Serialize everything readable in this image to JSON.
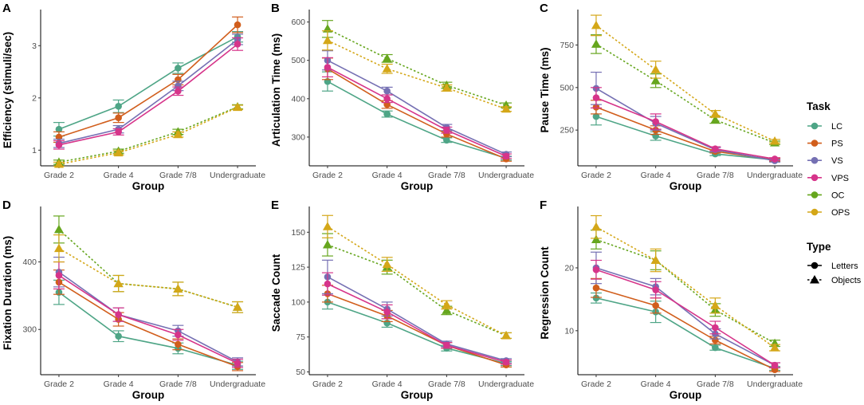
{
  "chart_data": [
    {
      "panel": "A",
      "type": "line",
      "xlabel": "Group",
      "ylabel": "Efficiency (stimuli/sec)",
      "categories": [
        "Grade 2",
        "Grade 4",
        "Grade 7/8",
        "Undergraduate"
      ],
      "ylim": [
        0.7,
        3.6
      ],
      "yticks": [
        1,
        2,
        3
      ],
      "series": [
        {
          "name": "LC",
          "type": "Letters",
          "values": [
            1.4,
            1.84,
            2.57,
            3.17
          ],
          "err": [
            0.13,
            0.12,
            0.1,
            0.1
          ]
        },
        {
          "name": "PS",
          "type": "Letters",
          "values": [
            1.25,
            1.62,
            2.35,
            3.4
          ],
          "err": [
            0.1,
            0.09,
            0.1,
            0.15
          ]
        },
        {
          "name": "VS",
          "type": "Letters",
          "values": [
            1.13,
            1.4,
            2.23,
            3.12
          ],
          "err": [
            0.08,
            0.07,
            0.09,
            0.1
          ]
        },
        {
          "name": "VPS",
          "type": "Letters",
          "values": [
            1.1,
            1.35,
            2.13,
            3.03
          ],
          "err": [
            0.08,
            0.06,
            0.08,
            0.12
          ]
        },
        {
          "name": "OC",
          "type": "Objects",
          "values": [
            0.77,
            0.98,
            1.35,
            1.83
          ],
          "err": [
            0.04,
            0.04,
            0.05,
            0.04
          ]
        },
        {
          "name": "OPS",
          "type": "Objects",
          "values": [
            0.73,
            0.95,
            1.3,
            1.82
          ],
          "err": [
            0.04,
            0.04,
            0.05,
            0.04
          ]
        }
      ]
    },
    {
      "panel": "B",
      "type": "line",
      "xlabel": "Group",
      "ylabel": "Articulation Time (ms)",
      "categories": [
        "Grade 2",
        "Grade 4",
        "Grade 7/8",
        "Undergraduate"
      ],
      "ylim": [
        225,
        620
      ],
      "yticks": [
        300,
        400,
        500,
        600
      ],
      "series": [
        {
          "name": "LC",
          "type": "Letters",
          "values": [
            445,
            360,
            292,
            245
          ],
          "err": [
            25,
            8,
            6,
            5
          ]
        },
        {
          "name": "PS",
          "type": "Letters",
          "values": [
            478,
            385,
            308,
            243
          ],
          "err": [
            28,
            10,
            8,
            6
          ]
        },
        {
          "name": "VS",
          "type": "Letters",
          "values": [
            500,
            420,
            325,
            255
          ],
          "err": [
            25,
            10,
            8,
            6
          ]
        },
        {
          "name": "VPS",
          "type": "Letters",
          "values": [
            482,
            400,
            318,
            250
          ],
          "err": [
            25,
            10,
            8,
            6
          ]
        },
        {
          "name": "OC",
          "type": "Objects",
          "values": [
            582,
            505,
            435,
            383
          ],
          "err": [
            22,
            10,
            8,
            6
          ]
        },
        {
          "name": "OPS",
          "type": "Objects",
          "values": [
            552,
            478,
            428,
            373
          ],
          "err": [
            25,
            12,
            8,
            6
          ]
        }
      ]
    },
    {
      "panel": "C",
      "type": "line",
      "xlabel": "Group",
      "ylabel": "Pause Time (ms)",
      "categories": [
        "Grade 2",
        "Grade 4",
        "Grade 7/8",
        "Undergraduate"
      ],
      "ylim": [
        40,
        930
      ],
      "yticks": [
        250,
        500,
        750
      ],
      "series": [
        {
          "name": "LC",
          "type": "Letters",
          "values": [
            330,
            215,
            110,
            75
          ],
          "err": [
            50,
            25,
            10,
            8
          ]
        },
        {
          "name": "PS",
          "type": "Letters",
          "values": [
            385,
            250,
            125,
            75
          ],
          "err": [
            40,
            25,
            10,
            8
          ]
        },
        {
          "name": "VS",
          "type": "Letters",
          "values": [
            495,
            290,
            135,
            70
          ],
          "err": [
            95,
            40,
            12,
            8
          ]
        },
        {
          "name": "VPS",
          "type": "Letters",
          "values": [
            440,
            300,
            140,
            80
          ],
          "err": [
            60,
            45,
            12,
            8
          ]
        },
        {
          "name": "OC",
          "type": "Objects",
          "values": [
            755,
            540,
            310,
            175
          ],
          "err": [
            55,
            40,
            20,
            10
          ]
        },
        {
          "name": "OPS",
          "type": "Objects",
          "values": [
            865,
            605,
            345,
            185
          ],
          "err": [
            60,
            50,
            20,
            10
          ]
        }
      ]
    },
    {
      "panel": "D",
      "type": "line",
      "xlabel": "Group",
      "ylabel": "Fixation Duration (ms)",
      "categories": [
        "Grade 2",
        "Grade 4",
        "Grade 7/8",
        "Undergraduate"
      ],
      "ylim": [
        233,
        475
      ],
      "yticks": [
        300,
        400
      ],
      "series": [
        {
          "name": "LC",
          "type": "Letters",
          "values": [
            355,
            290,
            272,
            247
          ],
          "err": [
            18,
            8,
            8,
            6
          ]
        },
        {
          "name": "PS",
          "type": "Letters",
          "values": [
            370,
            315,
            278,
            245
          ],
          "err": [
            18,
            10,
            8,
            6
          ]
        },
        {
          "name": "VS",
          "type": "Letters",
          "values": [
            385,
            322,
            298,
            252
          ],
          "err": [
            22,
            10,
            8,
            6
          ]
        },
        {
          "name": "VPS",
          "type": "Letters",
          "values": [
            380,
            322,
            292,
            250
          ],
          "err": [
            20,
            10,
            8,
            6
          ]
        },
        {
          "name": "OC",
          "type": "Objects",
          "values": [
            448,
            368,
            360,
            333
          ],
          "err": [
            20,
            12,
            10,
            8
          ]
        },
        {
          "name": "OPS",
          "type": "Objects",
          "values": [
            420,
            368,
            360,
            333
          ],
          "err": [
            20,
            12,
            10,
            8
          ]
        }
      ]
    },
    {
      "panel": "E",
      "type": "line",
      "xlabel": "Group",
      "ylabel": "Saccade Count",
      "categories": [
        "Grade 2",
        "Grade 4",
        "Grade 7/8",
        "Undergraduate"
      ],
      "ylim": [
        48,
        165
      ],
      "yticks": [
        50,
        75,
        100,
        125,
        150
      ],
      "series": [
        {
          "name": "LC",
          "type": "Letters",
          "values": [
            100,
            85,
            67,
            56
          ],
          "err": [
            5,
            3,
            2,
            1.5
          ]
        },
        {
          "name": "PS",
          "type": "Letters",
          "values": [
            106,
            90,
            69,
            55
          ],
          "err": [
            6,
            4,
            2,
            1.5
          ]
        },
        {
          "name": "VS",
          "type": "Letters",
          "values": [
            118,
            95,
            70,
            58
          ],
          "err": [
            12,
            5,
            2,
            1.5
          ]
        },
        {
          "name": "VPS",
          "type": "Letters",
          "values": [
            113,
            93,
            69,
            57
          ],
          "err": [
            8,
            5,
            2,
            1.5
          ]
        },
        {
          "name": "OC",
          "type": "Objects",
          "values": [
            141,
            125,
            94,
            76
          ],
          "err": [
            8,
            5,
            3,
            2
          ]
        },
        {
          "name": "OPS",
          "type": "Objects",
          "values": [
            154,
            127,
            98,
            76
          ],
          "err": [
            8,
            5,
            3,
            2
          ]
        }
      ]
    },
    {
      "panel": "F",
      "type": "line",
      "xlabel": "Group",
      "ylabel": "Regression Count",
      "categories": [
        "Grade 2",
        "Grade 4",
        "Grade 7/8",
        "Undergraduate"
      ],
      "ylim": [
        3,
        29
      ],
      "yticks": [
        10,
        20
      ],
      "series": [
        {
          "name": "LC",
          "type": "Letters",
          "values": [
            15.2,
            13.0,
            7.3,
            4.0
          ],
          "err": [
            0.8,
            1.7,
            0.4,
            0.3
          ]
        },
        {
          "name": "PS",
          "type": "Letters",
          "values": [
            16.8,
            14.0,
            8.5,
            3.8
          ],
          "err": [
            1.5,
            1.2,
            0.6,
            0.3
          ]
        },
        {
          "name": "VS",
          "type": "Letters",
          "values": [
            20.0,
            17.0,
            9.5,
            4.5
          ],
          "err": [
            2.5,
            1.3,
            0.8,
            0.4
          ]
        },
        {
          "name": "VPS",
          "type": "Letters",
          "values": [
            19.7,
            16.5,
            10.5,
            4.5
          ],
          "err": [
            1.5,
            1.3,
            1.0,
            0.4
          ]
        },
        {
          "name": "OC",
          "type": "Objects",
          "values": [
            24.5,
            21.2,
            13.3,
            8.0
          ],
          "err": [
            1.5,
            1.5,
            1.0,
            0.5
          ]
        },
        {
          "name": "OPS",
          "type": "Objects",
          "values": [
            26.5,
            21.2,
            14.0,
            7.3
          ],
          "err": [
            1.8,
            1.8,
            1.2,
            0.5
          ]
        }
      ]
    }
  ],
  "legend": {
    "task_title": "Task",
    "tasks": [
      {
        "name": "LC",
        "color": "#4ea586"
      },
      {
        "name": "PS",
        "color": "#d15e1c"
      },
      {
        "name": "VS",
        "color": "#7570b3"
      },
      {
        "name": "VPS",
        "color": "#d6348a"
      },
      {
        "name": "OC",
        "color": "#66a61e"
      },
      {
        "name": "OPS",
        "color": "#d4a718"
      }
    ],
    "type_title": "Type",
    "types": [
      {
        "name": "Letters",
        "shape": "circle",
        "line": "solid"
      },
      {
        "name": "Objects",
        "shape": "triangle",
        "line": "dotted"
      }
    ]
  }
}
